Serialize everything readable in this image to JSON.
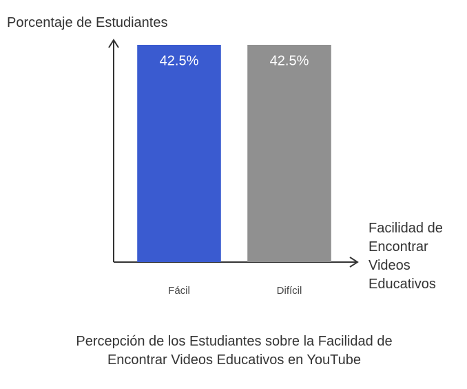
{
  "chart_data": {
    "type": "bar",
    "title": "Percepción de los Estudiantes sobre la Facilidad de Encontrar Videos Educativos en YouTube",
    "ylabel": "Porcentaje de Estudiantes",
    "xlabel": "Facilidad de Encontrar Videos Educativos",
    "categories": [
      "Fácil",
      "Difícil"
    ],
    "values": [
      42.5,
      42.5
    ],
    "value_labels": [
      "42.5%",
      "42.5%"
    ],
    "colors": [
      "#3a5bd0",
      "#909090"
    ],
    "ylim": [
      0,
      42.5
    ]
  }
}
